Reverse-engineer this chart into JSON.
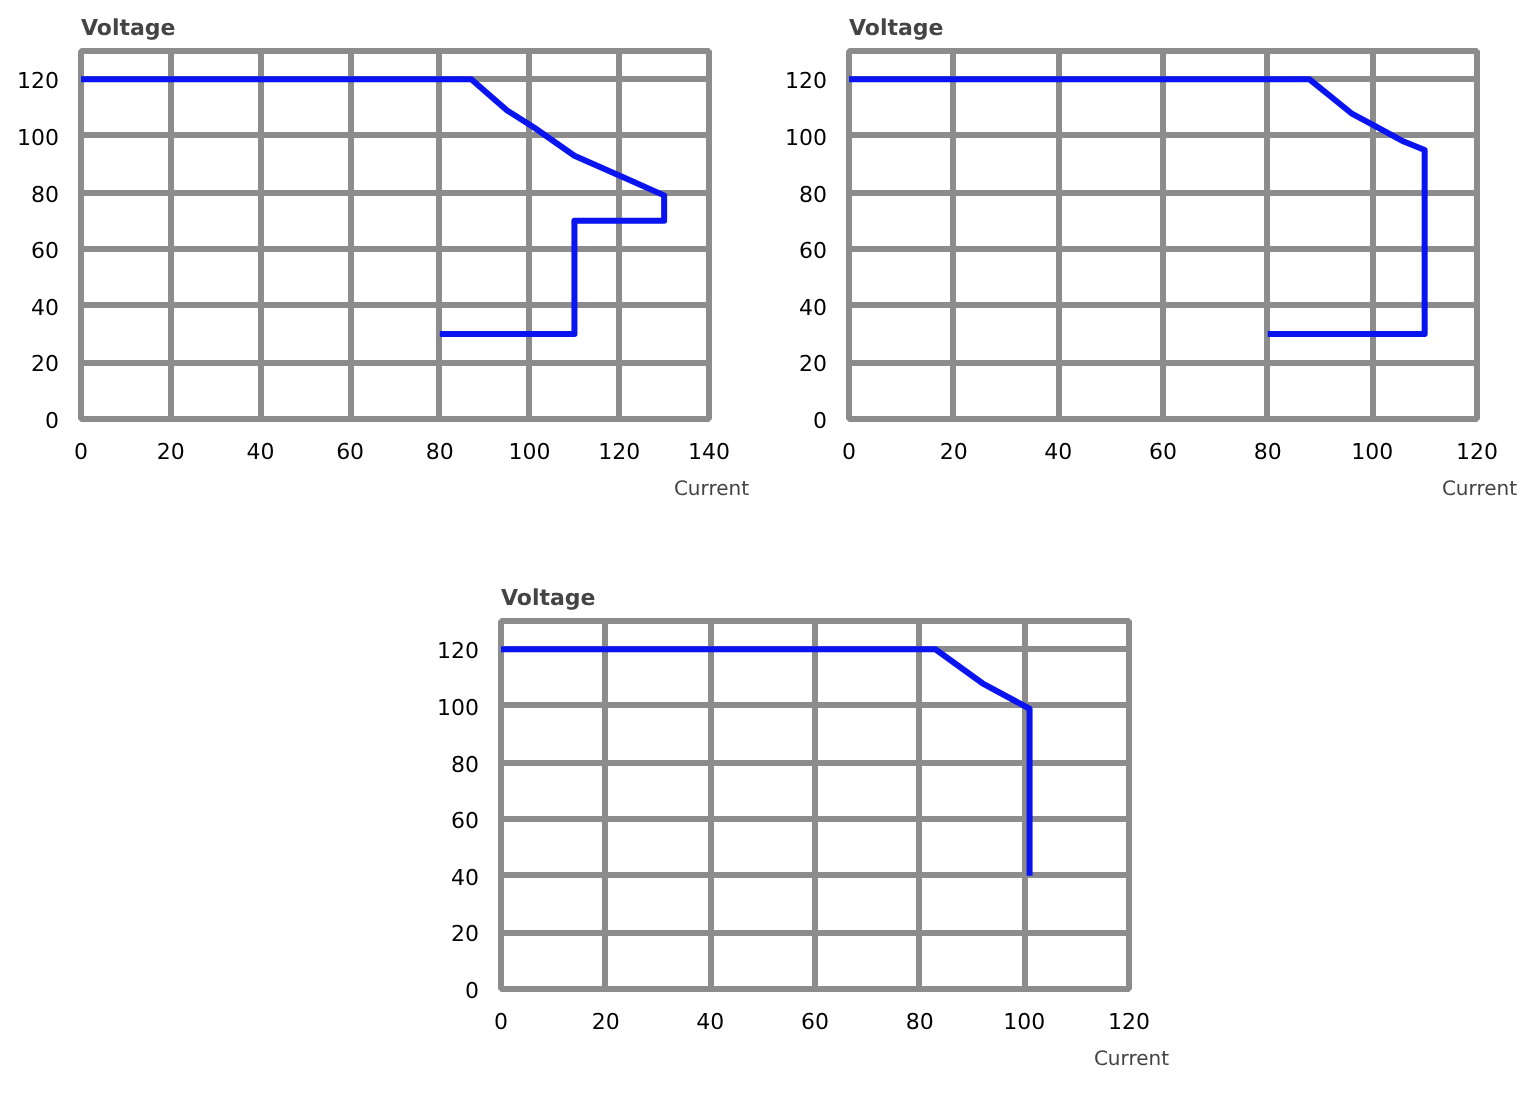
{
  "chart_data": [
    {
      "type": "line",
      "xlabel": "Current",
      "ylabel": "Voltage",
      "xlim": [
        0,
        140
      ],
      "ylim": [
        0,
        130
      ],
      "xticks": [
        0,
        20,
        40,
        60,
        80,
        100,
        120,
        140
      ],
      "yticks": [
        0,
        20,
        40,
        60,
        80,
        100,
        120
      ],
      "grid": true,
      "series": [
        {
          "color": "#0a14f0",
          "x": [
            0,
            87,
            95,
            101,
            110,
            120,
            130,
            130,
            110,
            110,
            80
          ],
          "values": [
            120,
            120,
            109,
            103,
            93,
            86,
            79,
            70,
            70,
            30,
            30
          ]
        }
      ]
    },
    {
      "type": "line",
      "xlabel": "Current",
      "ylabel": "Voltage",
      "xlim": [
        0,
        120
      ],
      "ylim": [
        0,
        130
      ],
      "xticks": [
        0,
        20,
        40,
        60,
        80,
        100,
        120
      ],
      "yticks": [
        0,
        20,
        40,
        60,
        80,
        100,
        120
      ],
      "grid": true,
      "series": [
        {
          "color": "#0a14f0",
          "x": [
            0,
            88,
            96,
            101,
            106,
            110,
            110,
            80
          ],
          "values": [
            120,
            120,
            108,
            103,
            98,
            95,
            30,
            30
          ]
        }
      ]
    },
    {
      "type": "line",
      "xlabel": "Current",
      "ylabel": "Voltage",
      "xlim": [
        0,
        120
      ],
      "ylim": [
        0,
        130
      ],
      "xticks": [
        0,
        20,
        40,
        60,
        80,
        100,
        120
      ],
      "yticks": [
        0,
        20,
        40,
        60,
        80,
        100,
        120
      ],
      "grid": true,
      "series": [
        {
          "color": "#0a14f0",
          "x": [
            0,
            83,
            92,
            101,
            101
          ],
          "values": [
            120,
            120,
            108,
            99,
            40
          ]
        }
      ]
    }
  ]
}
